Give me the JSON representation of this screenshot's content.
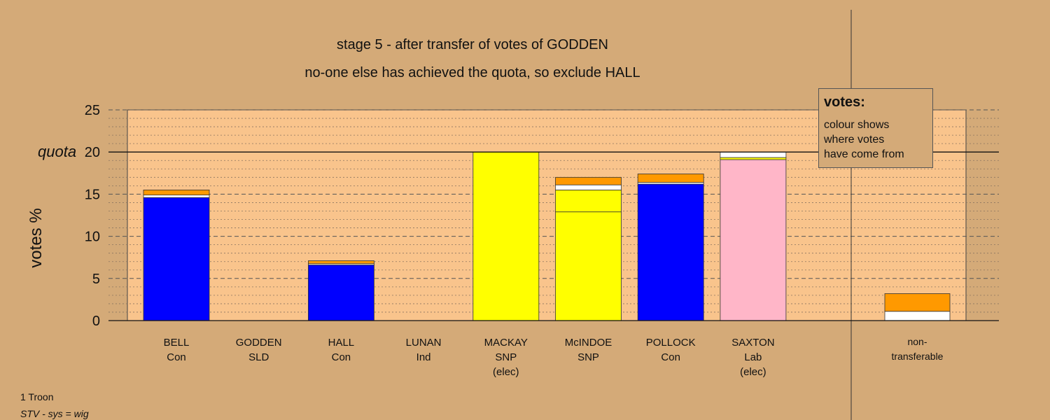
{
  "title": "stage 5 - after transfer of votes of GODDEN",
  "subtitle": "no-one else has achieved the quota, so exclude HALL",
  "legend": {
    "heading": "votes:",
    "lines": [
      "colour shows",
      "where votes",
      "have come from"
    ]
  },
  "footer": {
    "line1": "1 Troon",
    "line2": "STV - sys = wig"
  },
  "colors": {
    "background": "#d4aa78",
    "plot_area": "#f9c48c",
    "Con": "#0000ff",
    "SNP": "#ffff00",
    "Lab": "#ffb6c8",
    "SLD": "#ff9900",
    "transfer_white": "#ffffff"
  },
  "chart_data": {
    "type": "bar",
    "stacked": true,
    "ylabel": "votes %",
    "ylim": [
      0,
      25
    ],
    "yticks": [
      0,
      5,
      10,
      15,
      20,
      25
    ],
    "quota": 20,
    "quota_label": "quota",
    "grid": true,
    "categories": [
      {
        "name": "BELL",
        "party": "Con",
        "note": ""
      },
      {
        "name": "GODDEN",
        "party": "SLD",
        "note": ""
      },
      {
        "name": "HALL",
        "party": "Con",
        "note": ""
      },
      {
        "name": "LUNAN",
        "party": "Ind",
        "note": ""
      },
      {
        "name": "MACKAY",
        "party": "SNP",
        "note": "(elec)"
      },
      {
        "name": "McINDOE",
        "party": "SNP",
        "note": ""
      },
      {
        "name": "POLLOCK",
        "party": "Con",
        "note": ""
      },
      {
        "name": "SAXTON",
        "party": "Lab",
        "note": "(elec)"
      }
    ],
    "nontransferable_label": [
      "non-",
      "transferable"
    ],
    "stacks": [
      [
        {
          "v": 14.6,
          "c": "Con"
        },
        {
          "v": 0.3,
          "c": "transfer_white"
        },
        {
          "v": 0.6,
          "c": "SLD"
        }
      ],
      [],
      [
        {
          "v": 6.6,
          "c": "Con"
        },
        {
          "v": 0.15,
          "c": "transfer_white"
        },
        {
          "v": 0.35,
          "c": "SLD"
        }
      ],
      [],
      [
        {
          "v": 20.0,
          "c": "SNP"
        }
      ],
      [
        {
          "v": 12.9,
          "c": "SNP"
        },
        {
          "v": 2.6,
          "c": "SNP"
        },
        {
          "v": 0.6,
          "c": "transfer_white"
        },
        {
          "v": 0.9,
          "c": "SLD"
        }
      ],
      [
        {
          "v": 16.2,
          "c": "Con"
        },
        {
          "v": 0.2,
          "c": "transfer_white"
        },
        {
          "v": 1.0,
          "c": "SLD"
        }
      ],
      [
        {
          "v": 19.1,
          "c": "Lab"
        },
        {
          "v": 0.25,
          "c": "SNP"
        },
        {
          "v": 0.65,
          "c": "transfer_white"
        }
      ]
    ],
    "nontransferable": [
      {
        "v": 1.1,
        "c": "transfer_white"
      },
      {
        "v": 2.1,
        "c": "SLD"
      }
    ]
  }
}
